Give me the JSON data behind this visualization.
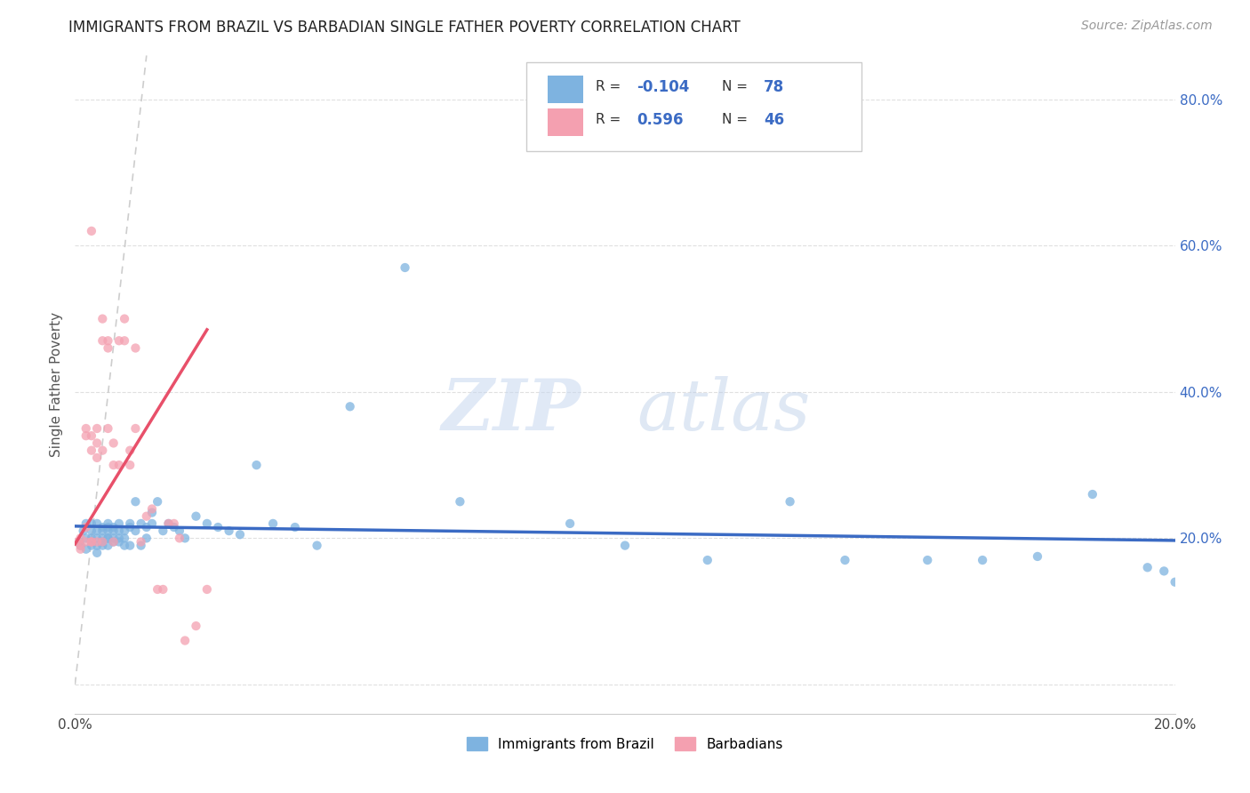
{
  "title": "IMMIGRANTS FROM BRAZIL VS BARBADIAN SINGLE FATHER POVERTY CORRELATION CHART",
  "source": "Source: ZipAtlas.com",
  "ylabel": "Single Father Poverty",
  "xlim": [
    0.0,
    0.2
  ],
  "ylim": [
    -0.04,
    0.86
  ],
  "yticks": [
    0.0,
    0.2,
    0.4,
    0.6,
    0.8
  ],
  "ytick_labels": [
    "",
    "20.0%",
    "40.0%",
    "60.0%",
    "80.0%"
  ],
  "xticks": [
    0.0,
    0.05,
    0.1,
    0.15,
    0.2
  ],
  "xtick_labels": [
    "0.0%",
    "",
    "",
    "",
    "20.0%"
  ],
  "brazil_color": "#7EB3E0",
  "barbadian_color": "#F4A0B0",
  "brazil_R": -0.104,
  "brazil_N": 78,
  "barbadian_R": 0.596,
  "barbadian_N": 46,
  "brazil_line_color": "#3B6BC4",
  "barbadian_line_color": "#E8506A",
  "diagonal_line_color": "#C8C8C8",
  "background_color": "#FFFFFF",
  "grid_color": "#E0E0E0",
  "brazil_x": [
    0.0008,
    0.001,
    0.0015,
    0.002,
    0.002,
    0.002,
    0.003,
    0.003,
    0.003,
    0.003,
    0.004,
    0.004,
    0.004,
    0.004,
    0.004,
    0.005,
    0.005,
    0.005,
    0.005,
    0.005,
    0.006,
    0.006,
    0.006,
    0.006,
    0.006,
    0.006,
    0.007,
    0.007,
    0.007,
    0.007,
    0.008,
    0.008,
    0.008,
    0.008,
    0.009,
    0.009,
    0.009,
    0.01,
    0.01,
    0.01,
    0.011,
    0.011,
    0.012,
    0.012,
    0.013,
    0.013,
    0.014,
    0.014,
    0.015,
    0.016,
    0.017,
    0.018,
    0.019,
    0.02,
    0.022,
    0.024,
    0.026,
    0.028,
    0.03,
    0.033,
    0.036,
    0.04,
    0.044,
    0.05,
    0.06,
    0.07,
    0.09,
    0.1,
    0.115,
    0.13,
    0.14,
    0.155,
    0.165,
    0.175,
    0.185,
    0.195,
    0.198,
    0.2
  ],
  "brazil_y": [
    0.195,
    0.19,
    0.21,
    0.22,
    0.2,
    0.185,
    0.21,
    0.19,
    0.2,
    0.22,
    0.19,
    0.21,
    0.2,
    0.18,
    0.22,
    0.195,
    0.21,
    0.2,
    0.215,
    0.19,
    0.2,
    0.215,
    0.22,
    0.19,
    0.21,
    0.2,
    0.195,
    0.21,
    0.215,
    0.2,
    0.21,
    0.195,
    0.2,
    0.22,
    0.21,
    0.19,
    0.2,
    0.215,
    0.22,
    0.19,
    0.25,
    0.21,
    0.22,
    0.19,
    0.215,
    0.2,
    0.235,
    0.22,
    0.25,
    0.21,
    0.22,
    0.215,
    0.21,
    0.2,
    0.23,
    0.22,
    0.215,
    0.21,
    0.205,
    0.3,
    0.22,
    0.215,
    0.19,
    0.38,
    0.57,
    0.25,
    0.22,
    0.19,
    0.17,
    0.25,
    0.17,
    0.17,
    0.17,
    0.175,
    0.26,
    0.16,
    0.155,
    0.14
  ],
  "barbadian_x": [
    0.0005,
    0.001,
    0.001,
    0.001,
    0.002,
    0.002,
    0.002,
    0.002,
    0.003,
    0.003,
    0.003,
    0.003,
    0.003,
    0.004,
    0.004,
    0.004,
    0.004,
    0.005,
    0.005,
    0.005,
    0.005,
    0.006,
    0.006,
    0.006,
    0.007,
    0.007,
    0.007,
    0.008,
    0.008,
    0.009,
    0.009,
    0.01,
    0.01,
    0.011,
    0.011,
    0.012,
    0.013,
    0.014,
    0.015,
    0.016,
    0.017,
    0.018,
    0.019,
    0.02,
    0.022,
    0.024
  ],
  "barbadian_y": [
    0.195,
    0.185,
    0.2,
    0.19,
    0.195,
    0.215,
    0.34,
    0.35,
    0.195,
    0.32,
    0.62,
    0.195,
    0.34,
    0.31,
    0.35,
    0.195,
    0.33,
    0.47,
    0.5,
    0.32,
    0.195,
    0.46,
    0.47,
    0.35,
    0.3,
    0.33,
    0.195,
    0.47,
    0.3,
    0.47,
    0.5,
    0.3,
    0.32,
    0.46,
    0.35,
    0.195,
    0.23,
    0.24,
    0.13,
    0.13,
    0.22,
    0.22,
    0.2,
    0.06,
    0.08,
    0.13
  ]
}
